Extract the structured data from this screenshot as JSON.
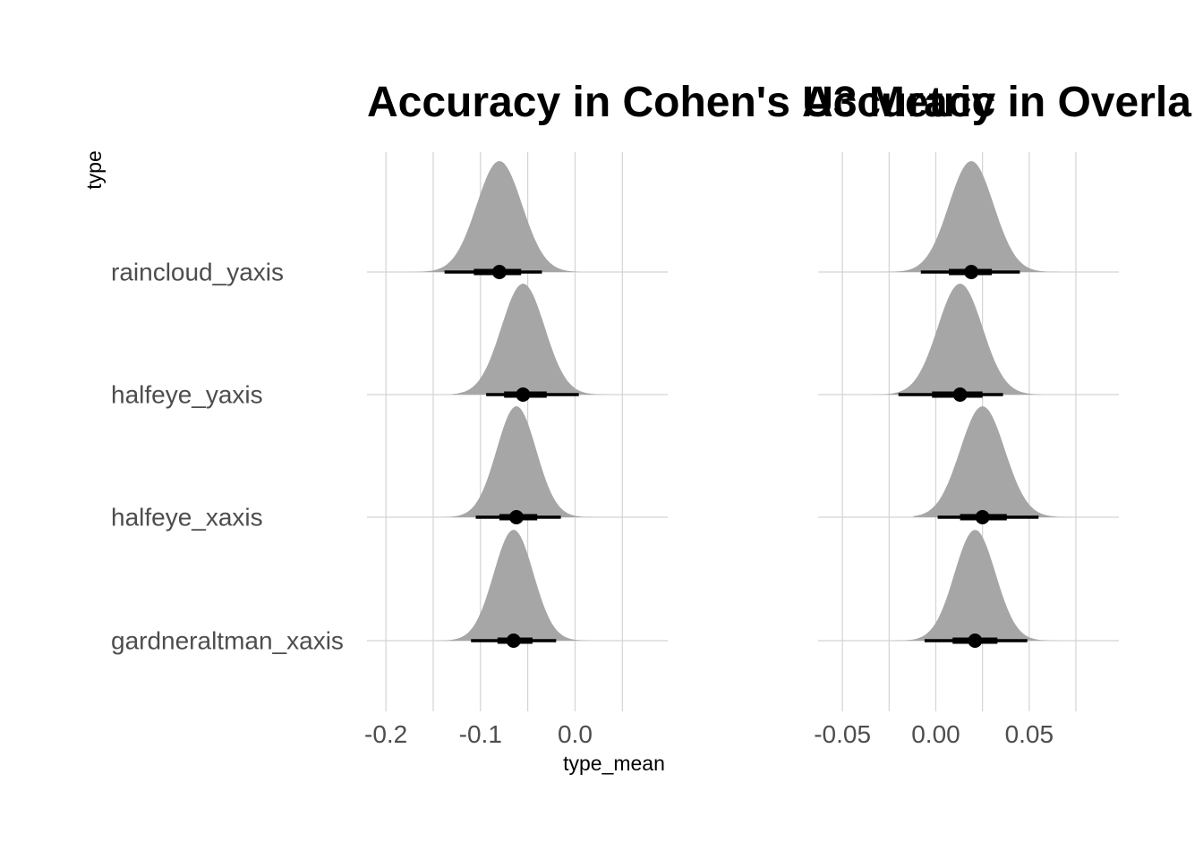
{
  "y_axis_title": "type",
  "x_axis_title": "type_mean",
  "categories": [
    "raincloud_yaxis",
    "halfeye_yaxis",
    "halfeye_xaxis",
    "gardneraltman_xaxis"
  ],
  "chart_data": [
    {
      "type": "halfeye",
      "title": "Accuracy in Cohen's U3 Metric",
      "xlabel": "type_mean",
      "ylabel": "type",
      "xlim": [
        -0.22,
        0.098
      ],
      "x_ticks": [
        -0.2,
        -0.1,
        0.0
      ],
      "x_tick_labels": [
        "-0.2",
        "-0.1",
        "0.0"
      ],
      "x_minor_ticks": [
        -0.15,
        -0.05,
        0.05
      ],
      "grid": true,
      "series": [
        {
          "category": "raincloud_yaxis",
          "median": -0.08,
          "interval_66": [
            -0.107,
            -0.057
          ],
          "interval_95": [
            -0.138,
            -0.035
          ],
          "sd": 0.024,
          "range": [
            -0.185,
            0.005
          ]
        },
        {
          "category": "halfeye_yaxis",
          "median": -0.055,
          "interval_66": [
            -0.075,
            -0.03
          ],
          "interval_95": [
            -0.094,
            0.004
          ],
          "sd": 0.023,
          "range": [
            -0.13,
            0.042
          ]
        },
        {
          "category": "halfeye_xaxis",
          "median": -0.062,
          "interval_66": [
            -0.08,
            -0.04
          ],
          "interval_95": [
            -0.105,
            -0.015
          ],
          "sd": 0.021,
          "range": [
            -0.14,
            0.03
          ]
        },
        {
          "category": "gardneraltman_xaxis",
          "median": -0.065,
          "interval_66": [
            -0.082,
            -0.045
          ],
          "interval_95": [
            -0.11,
            -0.02
          ],
          "sd": 0.021,
          "range": [
            -0.17,
            0.045
          ]
        }
      ]
    },
    {
      "type": "halfeye",
      "title": "Accuracy in Overla",
      "xlabel": "",
      "ylabel": "",
      "xlim": [
        -0.063,
        0.098
      ],
      "x_ticks": [
        -0.05,
        0.0,
        0.05
      ],
      "x_tick_labels": [
        "-0.05",
        "0.00",
        "0.05"
      ],
      "x_minor_ticks": [
        -0.025,
        0.025,
        0.075
      ],
      "grid": true,
      "series": [
        {
          "category": "raincloud_yaxis",
          "median": 0.019,
          "interval_66": [
            0.007,
            0.03
          ],
          "interval_95": [
            -0.008,
            0.045
          ],
          "sd": 0.012,
          "range": [
            -0.035,
            0.066
          ]
        },
        {
          "category": "halfeye_yaxis",
          "median": 0.013,
          "interval_66": [
            -0.002,
            0.025
          ],
          "interval_95": [
            -0.02,
            0.036
          ],
          "sd": 0.012,
          "range": [
            -0.042,
            0.057
          ]
        },
        {
          "category": "halfeye_xaxis",
          "median": 0.025,
          "interval_66": [
            0.013,
            0.038
          ],
          "interval_95": [
            0.001,
            0.055
          ],
          "sd": 0.012,
          "range": [
            -0.012,
            0.075
          ]
        },
        {
          "category": "gardneraltman_xaxis",
          "median": 0.021,
          "interval_66": [
            0.009,
            0.033
          ],
          "interval_95": [
            -0.006,
            0.049
          ],
          "sd": 0.011,
          "range": [
            -0.046,
            0.083
          ]
        }
      ]
    }
  ]
}
